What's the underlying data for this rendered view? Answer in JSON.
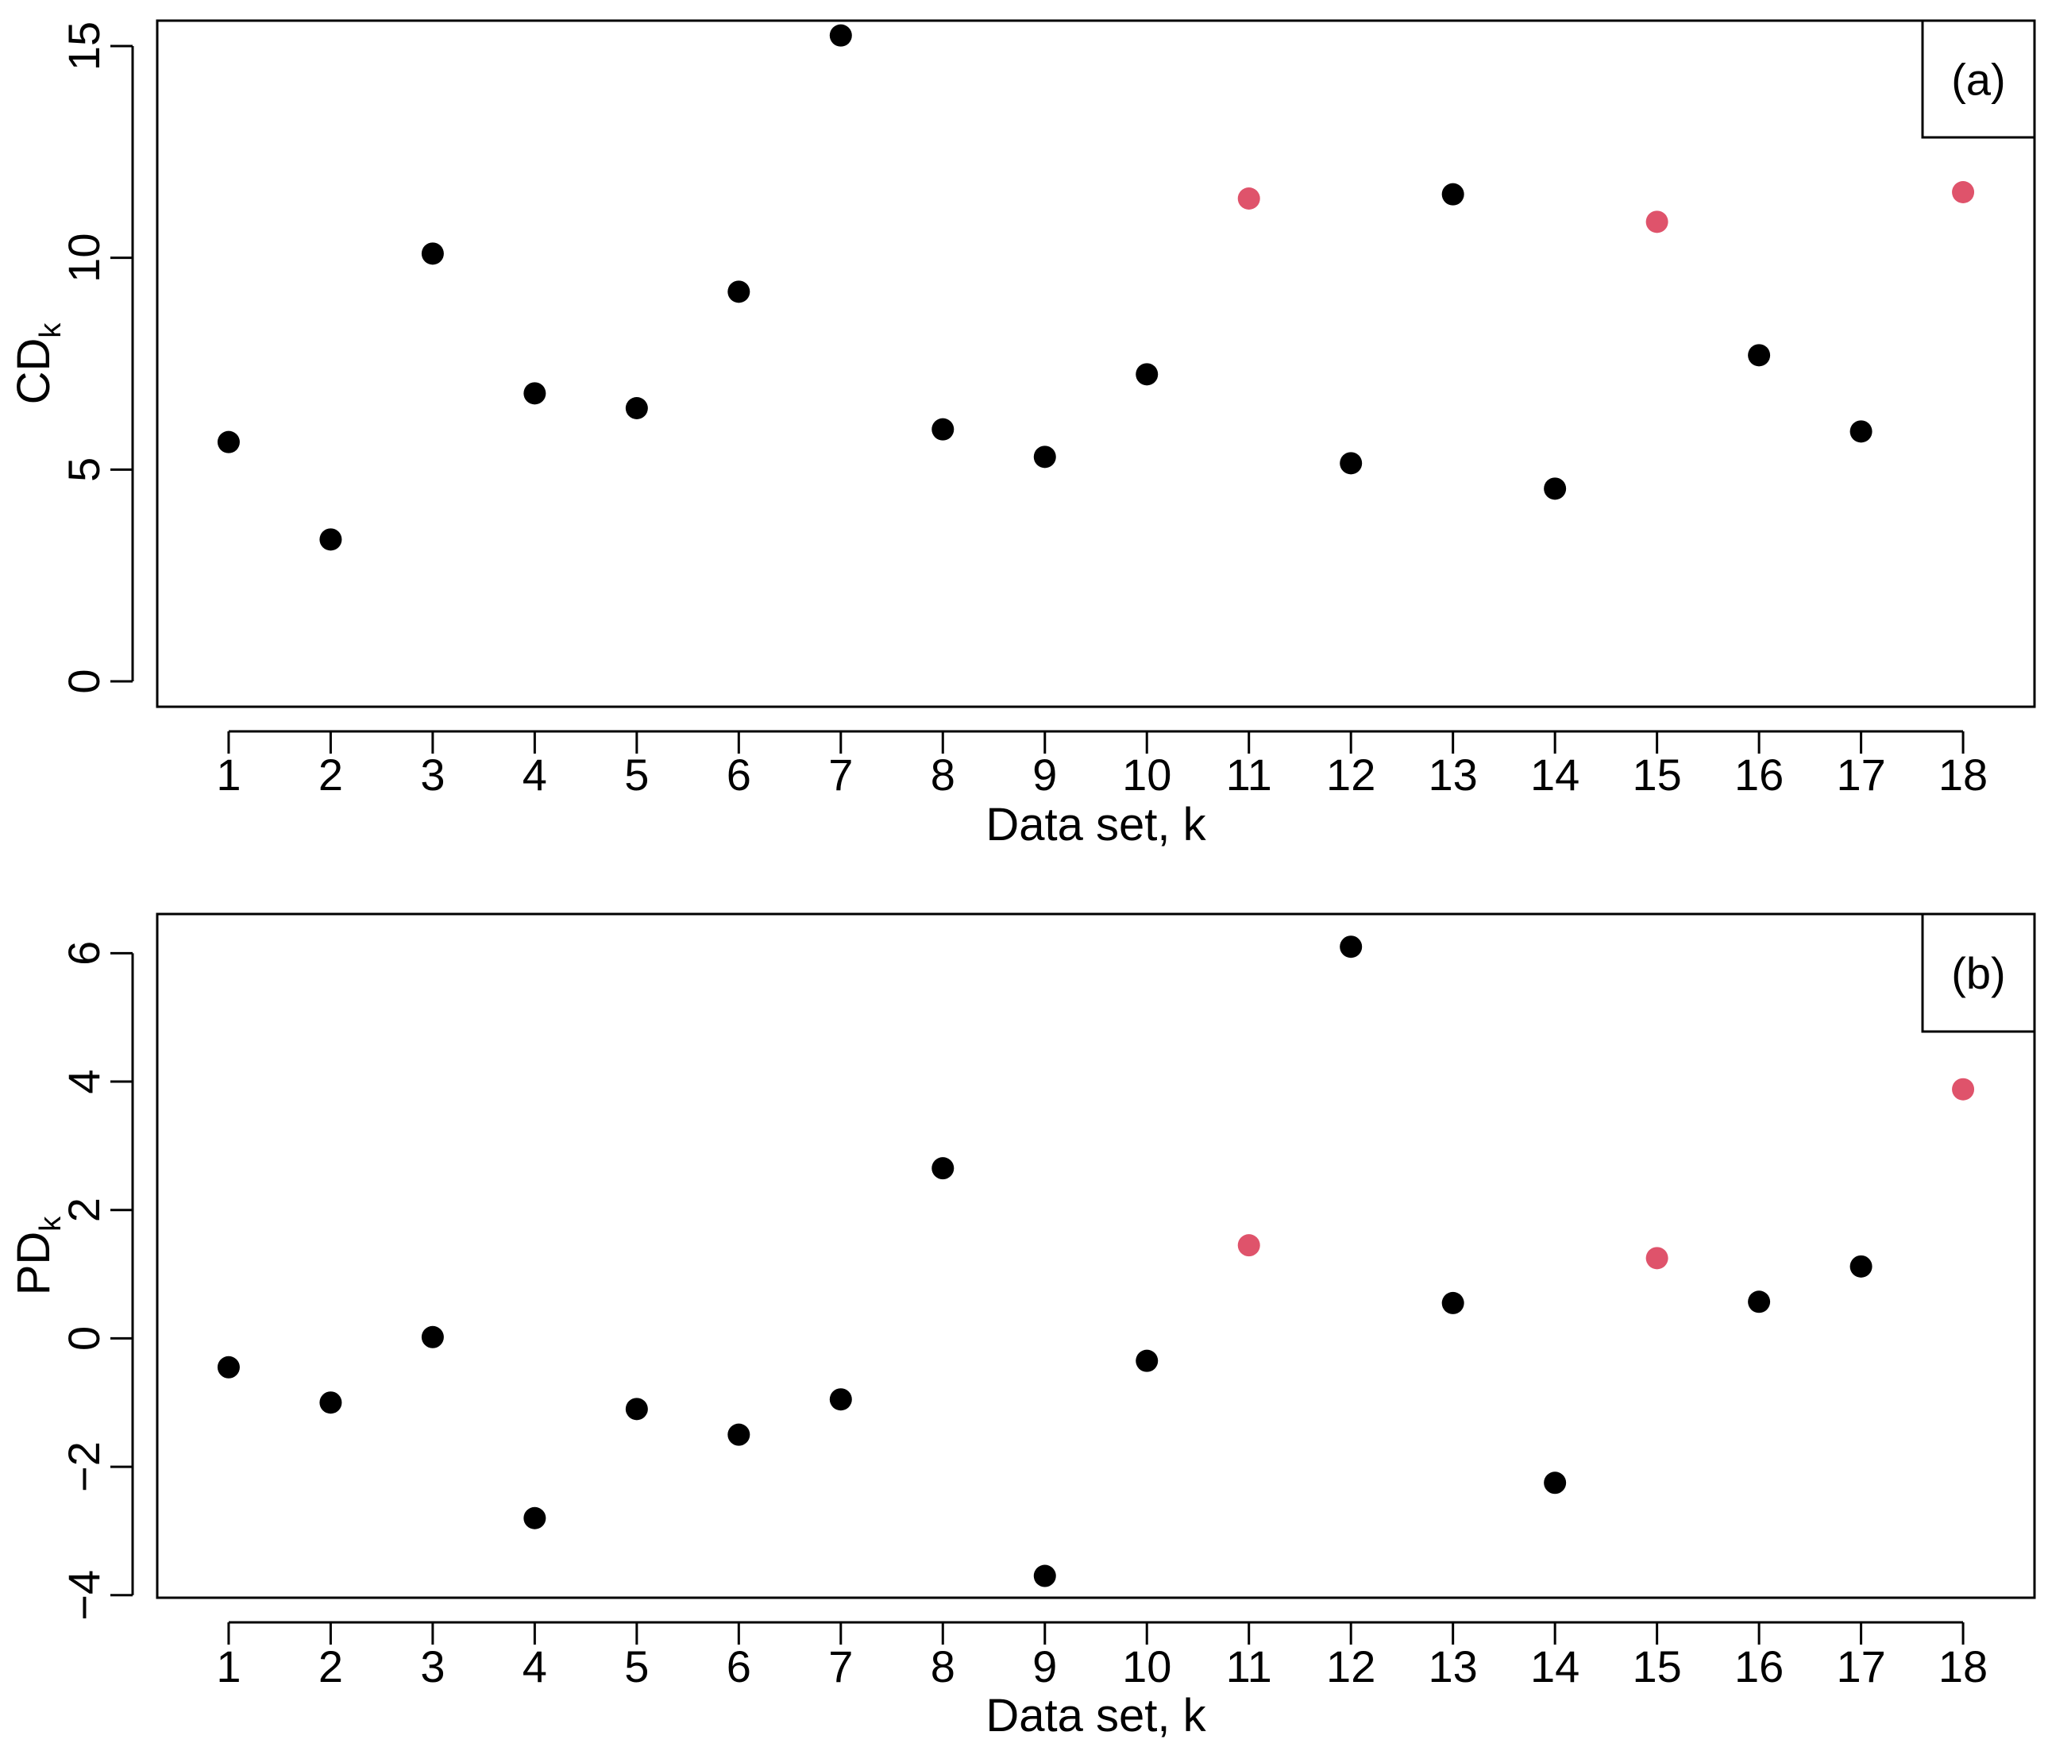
{
  "chart_data": [
    {
      "type": "scatter",
      "panel_label": "(a)",
      "xlabel": "Data set, k",
      "ylabel": "CD",
      "ylabel_subscript": "k",
      "x": [
        1,
        2,
        3,
        4,
        5,
        6,
        7,
        8,
        9,
        10,
        11,
        12,
        13,
        14,
        15,
        16,
        17,
        18
      ],
      "y": [
        5.65,
        3.35,
        10.1,
        6.8,
        6.45,
        9.2,
        15.25,
        5.95,
        5.3,
        7.25,
        11.4,
        5.15,
        11.5,
        4.55,
        10.85,
        7.7,
        5.9,
        11.55
      ],
      "highlight_indices": [
        10,
        14,
        17
      ],
      "x_ticks": [
        1,
        2,
        3,
        4,
        5,
        6,
        7,
        8,
        9,
        10,
        11,
        12,
        13,
        14,
        15,
        16,
        17,
        18
      ],
      "x_tick_labels": [
        "1",
        "2",
        "3",
        "4",
        "5",
        "6",
        "7",
        "8",
        "9",
        "10",
        "11",
        "12",
        "13",
        "14",
        "15",
        "16",
        "17",
        "18"
      ],
      "y_ticks": [
        0,
        5,
        10,
        15
      ],
      "y_tick_labels": [
        "0",
        "5",
        "10",
        "15"
      ],
      "xlim": [
        0.3,
        18.7
      ],
      "ylim": [
        -0.6,
        15.6
      ],
      "grid": false,
      "legend": "none"
    },
    {
      "type": "scatter",
      "panel_label": "(b)",
      "xlabel": "Data set, k",
      "ylabel": "PD",
      "ylabel_subscript": "k",
      "x": [
        1,
        2,
        3,
        4,
        5,
        6,
        7,
        8,
        9,
        10,
        11,
        12,
        13,
        14,
        15,
        16,
        17,
        18
      ],
      "y": [
        -0.45,
        -1.0,
        0.02,
        -2.8,
        -1.1,
        -1.5,
        -0.95,
        2.65,
        -3.7,
        -0.35,
        1.45,
        6.1,
        0.55,
        -2.25,
        1.25,
        0.57,
        1.12,
        3.88
      ],
      "highlight_indices": [
        10,
        14,
        17
      ],
      "x_ticks": [
        1,
        2,
        3,
        4,
        5,
        6,
        7,
        8,
        9,
        10,
        11,
        12,
        13,
        14,
        15,
        16,
        17,
        18
      ],
      "x_tick_labels": [
        "1",
        "2",
        "3",
        "4",
        "5",
        "6",
        "7",
        "8",
        "9",
        "10",
        "11",
        "12",
        "13",
        "14",
        "15",
        "16",
        "17",
        "18"
      ],
      "y_ticks": [
        -4,
        -2,
        0,
        2,
        4,
        6
      ],
      "y_tick_labels": [
        "−4",
        "−2",
        "0",
        "2",
        "4",
        "6"
      ],
      "xlim": [
        0.3,
        18.7
      ],
      "ylim": [
        -4.04,
        6.61
      ],
      "grid": false,
      "legend": "none"
    }
  ],
  "colors": {
    "point": "#000000",
    "highlight": "#df536b",
    "axis": "#000000",
    "background": "#ffffff"
  }
}
